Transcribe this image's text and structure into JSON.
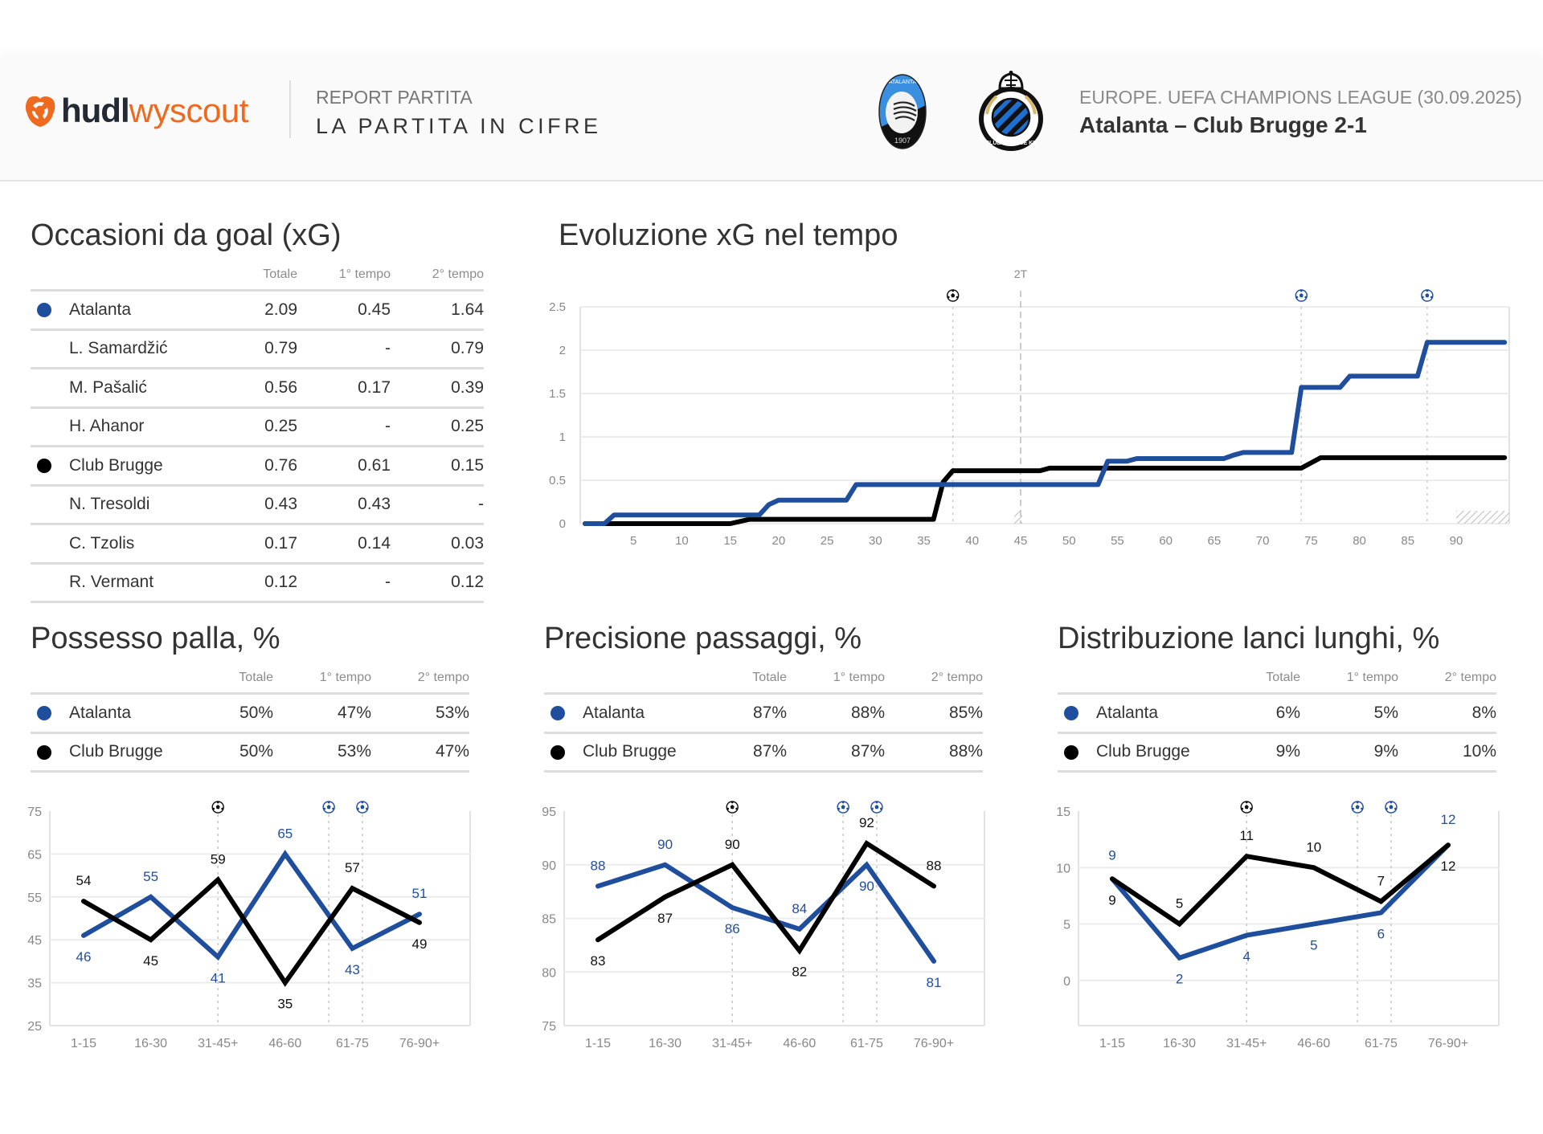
{
  "header": {
    "brand_primary": "hudl",
    "brand_secondary": "wyscout",
    "brand_icon": "hudl-logo-icon",
    "report_label": "REPORT PARTITA",
    "report_title": "LA PARTITA IN CIFRE",
    "home_logo": "atalanta-crest",
    "away_logo": "club-brugge-crest",
    "league": "EUROPE. UEFA CHAMPIONS LEAGUE (30.09.2025)",
    "match": "Atalanta – Club Brugge 2-1"
  },
  "colors": {
    "home": "#1f4e9c",
    "away": "#000000",
    "brand_orange": "#ee6a1e",
    "brand_dark": "#232a33"
  },
  "xg_table": {
    "title": "Occasioni da goal (xG)",
    "columns": [
      "Totale",
      "1° tempo",
      "2° tempo"
    ],
    "rows": [
      {
        "team": "home",
        "name": "Atalanta",
        "values": [
          "2.09",
          "0.45",
          "1.64"
        ]
      },
      {
        "team": "",
        "name": "L. Samardžić",
        "values": [
          "0.79",
          "-",
          "0.79"
        ]
      },
      {
        "team": "",
        "name": "M. Pašalić",
        "values": [
          "0.56",
          "0.17",
          "0.39"
        ]
      },
      {
        "team": "",
        "name": "H. Ahanor",
        "values": [
          "0.25",
          "-",
          "0.25"
        ]
      },
      {
        "team": "away",
        "name": "Club Brugge",
        "values": [
          "0.76",
          "0.61",
          "0.15"
        ]
      },
      {
        "team": "",
        "name": "N. Tresoldi",
        "values": [
          "0.43",
          "0.43",
          "-"
        ]
      },
      {
        "team": "",
        "name": "C. Tzolis",
        "values": [
          "0.17",
          "0.14",
          "0.03"
        ]
      },
      {
        "team": "",
        "name": "R. Vermant",
        "values": [
          "0.12",
          "-",
          "0.12"
        ]
      }
    ]
  },
  "possession_table": {
    "title": "Possesso palla, %",
    "columns": [
      "Totale",
      "1° tempo",
      "2° tempo"
    ],
    "rows": [
      {
        "team": "home",
        "name": "Atalanta",
        "values": [
          "50%",
          "47%",
          "53%"
        ]
      },
      {
        "team": "away",
        "name": "Club Brugge",
        "values": [
          "50%",
          "53%",
          "47%"
        ]
      }
    ]
  },
  "passing_table": {
    "title": "Precisione passaggi, %",
    "columns": [
      "Totale",
      "1° tempo",
      "2° tempo"
    ],
    "rows": [
      {
        "team": "home",
        "name": "Atalanta",
        "values": [
          "87%",
          "88%",
          "85%"
        ]
      },
      {
        "team": "away",
        "name": "Club Brugge",
        "values": [
          "87%",
          "87%",
          "88%"
        ]
      }
    ]
  },
  "longballs_table": {
    "title": "Distribuzione lanci lunghi, %",
    "columns": [
      "Totale",
      "1° tempo",
      "2° tempo"
    ],
    "rows": [
      {
        "team": "home",
        "name": "Atalanta",
        "values": [
          "6%",
          "5%",
          "8%"
        ]
      },
      {
        "team": "away",
        "name": "Club Brugge",
        "values": [
          "9%",
          "9%",
          "10%"
        ]
      }
    ]
  },
  "chart_data": [
    {
      "id": "xg-evolution",
      "type": "line",
      "title": "Evoluzione xG nel tempo",
      "xlabel": "",
      "ylabel": "",
      "xlim": [
        0,
        95
      ],
      "ylim": [
        0,
        2.5
      ],
      "yticks": [
        0,
        0.5,
        1,
        1.5,
        2,
        2.5
      ],
      "ytick_labels": [
        "0",
        "0.5",
        "1",
        "1.5",
        "2",
        "2.5"
      ],
      "xticks": [
        5,
        10,
        15,
        20,
        25,
        30,
        35,
        40,
        45,
        50,
        55,
        60,
        65,
        70,
        75,
        80,
        85,
        90
      ],
      "grid": true,
      "half_marker": {
        "minute": 45,
        "label": "2T"
      },
      "goals": [
        {
          "minute": 38,
          "team": "away"
        },
        {
          "minute": 74,
          "team": "home"
        },
        {
          "minute": 87,
          "team": "home"
        }
      ],
      "series": [
        {
          "name": "Atalanta",
          "team": "home",
          "points": [
            [
              0,
              0
            ],
            [
              2,
              0
            ],
            [
              3,
              0.1
            ],
            [
              18,
              0.1
            ],
            [
              19,
              0.22
            ],
            [
              20,
              0.27
            ],
            [
              27,
              0.27
            ],
            [
              28,
              0.45
            ],
            [
              53,
              0.45
            ],
            [
              54,
              0.72
            ],
            [
              56,
              0.72
            ],
            [
              57,
              0.75
            ],
            [
              66,
              0.75
            ],
            [
              67,
              0.79
            ],
            [
              68,
              0.82
            ],
            [
              73,
              0.82
            ],
            [
              74,
              1.57
            ],
            [
              78,
              1.57
            ],
            [
              79,
              1.7
            ],
            [
              86,
              1.7
            ],
            [
              87,
              2.09
            ],
            [
              95,
              2.09
            ]
          ]
        },
        {
          "name": "Club Brugge",
          "team": "away",
          "points": [
            [
              0,
              0
            ],
            [
              15,
              0
            ],
            [
              17,
              0.05
            ],
            [
              36,
              0.05
            ],
            [
              37,
              0.48
            ],
            [
              38,
              0.61
            ],
            [
              47,
              0.61
            ],
            [
              48,
              0.64
            ],
            [
              74,
              0.64
            ],
            [
              76,
              0.76
            ],
            [
              95,
              0.76
            ]
          ]
        }
      ]
    },
    {
      "id": "possession",
      "type": "line",
      "title": "Possesso palla, %",
      "categories": [
        "1-15",
        "16-30",
        "31-45+",
        "46-60",
        "61-75",
        "76-90+"
      ],
      "ylim": [
        25,
        75
      ],
      "yticks": [
        25,
        35,
        45,
        55,
        65,
        75
      ],
      "grid": true,
      "goal_markers": [
        {
          "position": 2.5,
          "team": "away"
        },
        {
          "position": 4.15,
          "team": "home"
        },
        {
          "position": 4.65,
          "team": "home"
        }
      ],
      "series": [
        {
          "name": "Atalanta",
          "team": "home",
          "values": [
            46,
            55,
            41,
            65,
            43,
            51
          ]
        },
        {
          "name": "Club Brugge",
          "team": "away",
          "values": [
            54,
            45,
            59,
            35,
            57,
            49
          ]
        }
      ]
    },
    {
      "id": "passing",
      "type": "line",
      "title": "Precisione passaggi, %",
      "categories": [
        "1-15",
        "16-30",
        "31-45+",
        "46-60",
        "61-75",
        "76-90+"
      ],
      "ylim": [
        75,
        95
      ],
      "yticks": [
        75,
        80,
        85,
        90,
        95
      ],
      "grid": true,
      "goal_markers": [
        {
          "position": 2.5,
          "team": "away"
        },
        {
          "position": 4.15,
          "team": "home"
        },
        {
          "position": 4.65,
          "team": "home"
        }
      ],
      "series": [
        {
          "name": "Atalanta",
          "team": "home",
          "values": [
            88,
            90,
            86,
            84,
            90,
            81
          ]
        },
        {
          "name": "Club Brugge",
          "team": "away",
          "values": [
            83,
            87,
            90,
            82,
            92,
            88
          ]
        }
      ]
    },
    {
      "id": "longballs",
      "type": "line",
      "title": "Distribuzione lanci lunghi, %",
      "categories": [
        "1-15",
        "16-30",
        "31-45+",
        "46-60",
        "61-75",
        "76-90+"
      ],
      "ylim": [
        -4,
        15
      ],
      "yticks": [
        0,
        5,
        10,
        15
      ],
      "grid": true,
      "goal_markers": [
        {
          "position": 2.5,
          "team": "away"
        },
        {
          "position": 4.15,
          "team": "home"
        },
        {
          "position": 4.65,
          "team": "home"
        }
      ],
      "series": [
        {
          "name": "Atalanta",
          "team": "home",
          "values": [
            9,
            2,
            4,
            5,
            6,
            12
          ]
        },
        {
          "name": "Club Brugge",
          "team": "away",
          "values": [
            9,
            5,
            11,
            10,
            7,
            12
          ]
        }
      ]
    }
  ]
}
